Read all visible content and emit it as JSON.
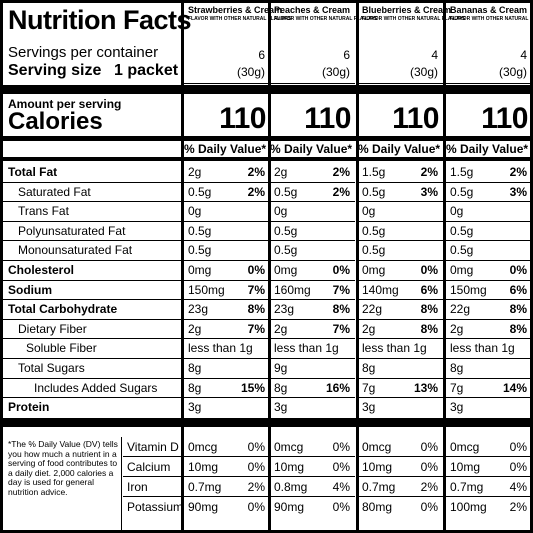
{
  "header": {
    "title": "Nutrition Facts",
    "servings_label": "Servings per container",
    "serving_size_label": "Serving size",
    "serving_size_value": "1 packet",
    "amount_per_serving": "Amount per serving",
    "calories_label": "Calories",
    "dv_header": "% Daily Value*"
  },
  "flavors": [
    {
      "name": "Strawberries & Cream",
      "sub": "FLAVOR WITH OTHER NATURAL FLAVORS",
      "servings": "6",
      "size": "(30g)",
      "calories": "110",
      "values": [
        [
          "2g",
          "2%"
        ],
        [
          "0.5g",
          "2%"
        ],
        [
          "0g",
          ""
        ],
        [
          "0.5g",
          ""
        ],
        [
          "0.5g",
          ""
        ],
        [
          "0mg",
          "0%"
        ],
        [
          "150mg",
          "7%"
        ],
        [
          "23g",
          "8%"
        ],
        [
          "2g",
          "7%"
        ],
        [
          "less than 1g",
          ""
        ],
        [
          "8g",
          ""
        ],
        [
          "8g",
          "15%"
        ],
        [
          "3g",
          ""
        ]
      ],
      "vitamins": [
        [
          "0mcg",
          "0%"
        ],
        [
          "10mg",
          "0%"
        ],
        [
          "0.7mg",
          "2%"
        ],
        [
          "90mg",
          "0%"
        ]
      ]
    },
    {
      "name": "Peaches & Cream",
      "sub": "FLAVOR WITH OTHER NATURAL FLAVORS",
      "servings": "6",
      "size": "(30g)",
      "calories": "110",
      "values": [
        [
          "2g",
          "2%"
        ],
        [
          "0.5g",
          "2%"
        ],
        [
          "0g",
          ""
        ],
        [
          "0.5g",
          ""
        ],
        [
          "0.5g",
          ""
        ],
        [
          "0mg",
          "0%"
        ],
        [
          "160mg",
          "7%"
        ],
        [
          "23g",
          "8%"
        ],
        [
          "2g",
          "7%"
        ],
        [
          "less than 1g",
          ""
        ],
        [
          "9g",
          ""
        ],
        [
          "8g",
          "16%"
        ],
        [
          "3g",
          ""
        ]
      ],
      "vitamins": [
        [
          "0mcg",
          "0%"
        ],
        [
          "10mg",
          "0%"
        ],
        [
          "0.8mg",
          "4%"
        ],
        [
          "90mg",
          "0%"
        ]
      ]
    },
    {
      "name": "Blueberries & Cream",
      "sub": "FLAVOR WITH OTHER NATURAL FLAVORS",
      "servings": "4",
      "size": "(30g)",
      "calories": "110",
      "values": [
        [
          "1.5g",
          "2%"
        ],
        [
          "0.5g",
          "3%"
        ],
        [
          "0g",
          ""
        ],
        [
          "0.5g",
          ""
        ],
        [
          "0.5g",
          ""
        ],
        [
          "0mg",
          "0%"
        ],
        [
          "140mg",
          "6%"
        ],
        [
          "22g",
          "8%"
        ],
        [
          "2g",
          "8%"
        ],
        [
          "less than 1g",
          ""
        ],
        [
          "8g",
          ""
        ],
        [
          "7g",
          "13%"
        ],
        [
          "3g",
          ""
        ]
      ],
      "vitamins": [
        [
          "0mcg",
          "0%"
        ],
        [
          "10mg",
          "0%"
        ],
        [
          "0.7mg",
          "2%"
        ],
        [
          "80mg",
          "0%"
        ]
      ]
    },
    {
      "name": "Bananas & Cream",
      "sub": "FLAVOR WITH OTHER NATURAL FLAVORS",
      "servings": "4",
      "size": "(30g)",
      "calories": "110",
      "values": [
        [
          "1.5g",
          "2%"
        ],
        [
          "0.5g",
          "3%"
        ],
        [
          "0g",
          ""
        ],
        [
          "0.5g",
          ""
        ],
        [
          "0.5g",
          ""
        ],
        [
          "0mg",
          "0%"
        ],
        [
          "150mg",
          "6%"
        ],
        [
          "22g",
          "8%"
        ],
        [
          "2g",
          "8%"
        ],
        [
          "less than 1g",
          ""
        ],
        [
          "8g",
          ""
        ],
        [
          "7g",
          "14%"
        ],
        [
          "3g",
          ""
        ]
      ],
      "vitamins": [
        [
          "0mcg",
          "0%"
        ],
        [
          "10mg",
          "0%"
        ],
        [
          "0.7mg",
          "4%"
        ],
        [
          "100mg",
          "2%"
        ]
      ]
    }
  ],
  "nutrients": [
    {
      "label": "Total Fat",
      "bold": true
    },
    {
      "label": "Saturated Fat",
      "bold": false
    },
    {
      "label": "Trans Fat",
      "bold": false
    },
    {
      "label": "Polyunsaturated Fat",
      "bold": false
    },
    {
      "label": "Monounsaturated Fat",
      "bold": false
    },
    {
      "label": "Cholesterol",
      "bold": true
    },
    {
      "label": "Sodium",
      "bold": true
    },
    {
      "label": "Total Carbohydrate",
      "bold": true
    },
    {
      "label": "Dietary Fiber",
      "bold": false
    },
    {
      "label": "Soluble Fiber",
      "bold": false
    },
    {
      "label": "Total Sugars",
      "bold": false
    },
    {
      "label": "Includes Added Sugars",
      "bold": false
    },
    {
      "label": "Protein",
      "bold": true
    }
  ],
  "vitamins": [
    "Vitamin D",
    "Calcium",
    "Iron",
    "Potassium"
  ],
  "footnote": "*The % Daily Value (DV) tells you how much a nutrient in a serving of food contributes to a daily diet. 2,000 calories a day is used for general nutrition advice."
}
